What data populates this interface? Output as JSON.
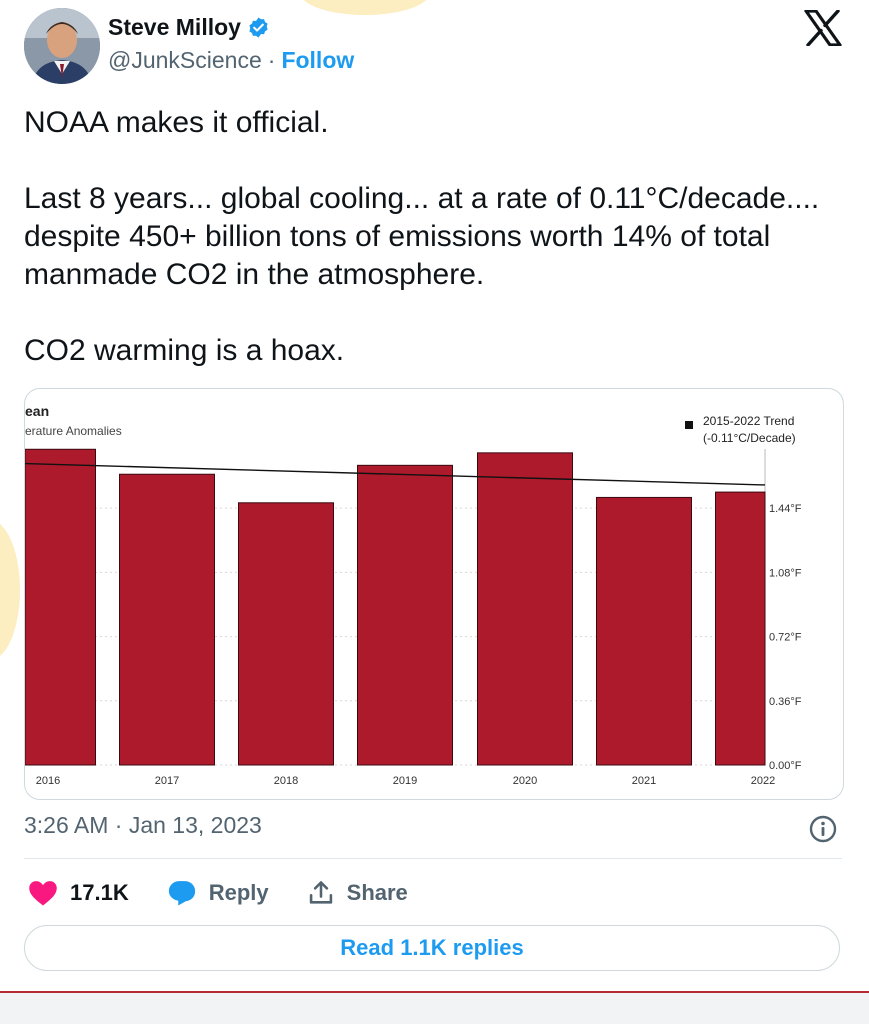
{
  "author": {
    "name": "Steve Milloy",
    "handle": "@JunkScience",
    "separator": "·",
    "follow_label": "Follow",
    "verified_icon": "verified-badge-icon",
    "avatar_icon": "avatar-photo"
  },
  "platform_icon": "x-logo-icon",
  "tweet": {
    "paragraphs": [
      "NOAA makes it official.",
      "Last 8 years... global cooling... at a rate of 0.11°C/decade.... despite 450+ billion tons of emissions worth 14% of total manmade CO2 in the atmosphere.",
      "CO2 warming is a hoax."
    ]
  },
  "chart_data": {
    "type": "bar",
    "title": "ean",
    "subtitle": "erature Anomalies",
    "categories": [
      "2016",
      "2017",
      "2018",
      "2019",
      "2020",
      "2021",
      "2022"
    ],
    "values": [
      1.77,
      1.63,
      1.47,
      1.68,
      1.75,
      1.5,
      1.53
    ],
    "yticks": [
      "0.00°F",
      "0.36°F",
      "0.72°F",
      "1.08°F",
      "1.44°F"
    ],
    "ylim": [
      0,
      1.85
    ],
    "trend": {
      "label_line1": "2015-2022 Trend",
      "label_line2": "(-0.11°C/Decade)",
      "start": 1.69,
      "end": 1.57
    },
    "colors": {
      "bar": "#ad1a2c",
      "trend": "#111111"
    },
    "legend_position": "top-right",
    "grid": "horizontal dashed"
  },
  "meta": {
    "time": "3:26 AM · Jan 13, 2023",
    "info_icon": "info-icon"
  },
  "actions": {
    "like_count": "17.1K",
    "reply_label": "Reply",
    "share_label": "Share"
  },
  "replies_button": "Read 1.1K replies",
  "colors": {
    "accent": "#1d9bf0",
    "like": "#f91880",
    "muted": "#536471"
  }
}
